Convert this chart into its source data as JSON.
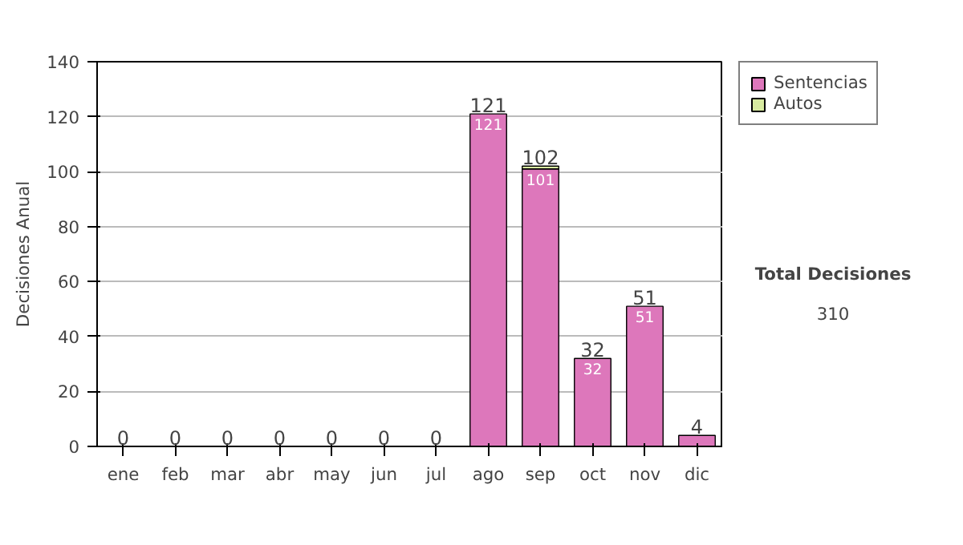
{
  "chart_data": {
    "type": "bar",
    "stacked": true,
    "ylabel": "Decisiones Anual",
    "categories": [
      "ene",
      "feb",
      "mar",
      "abr",
      "may",
      "jun",
      "jul",
      "ago",
      "sep",
      "oct",
      "nov",
      "dic"
    ],
    "series": [
      {
        "name": "Sentencias",
        "color": "#dd77bb",
        "values": [
          0,
          0,
          0,
          0,
          0,
          0,
          0,
          121,
          101,
          32,
          51,
          4
        ],
        "value_labels": [
          null,
          null,
          null,
          null,
          null,
          null,
          null,
          "121",
          "101",
          "32",
          "51",
          null
        ]
      },
      {
        "name": "Autos",
        "color": "#d8eba0",
        "values": [
          0,
          0,
          0,
          0,
          0,
          0,
          0,
          0,
          1,
          0,
          0,
          0
        ]
      }
    ],
    "totals": [
      "0",
      "0",
      "0",
      "0",
      "0",
      "0",
      "0",
      "121",
      "102",
      "32",
      "51",
      "4"
    ],
    "ylim": [
      0,
      140
    ],
    "yticks": [
      0,
      20,
      40,
      60,
      80,
      100,
      120,
      140
    ],
    "grid": "y",
    "legend": "right",
    "annotations": [
      "Total Decisiones",
      "310"
    ]
  }
}
